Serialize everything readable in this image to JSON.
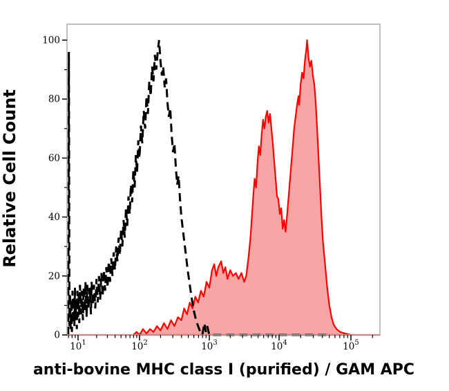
{
  "figure": {
    "background": "#ffffff",
    "frame_color": "#b0b0b0",
    "tick_color": "#000000",
    "label_color": "#000000"
  },
  "chart_data": {
    "type": "area",
    "title": "",
    "xlabel": "anti-bovine MHC class I (purified) / GAM APC",
    "ylabel": "Relative Cell Count",
    "x_scale": "log10",
    "xlim_log10": [
      0.82,
      5.4
    ],
    "ylim": [
      0,
      100
    ],
    "grid": false,
    "legend": "none",
    "x_axis": {
      "tick_base": "10",
      "tick_exponents": [
        1,
        2,
        3,
        4,
        5
      ],
      "minor_ticks": "log multiples 2-9 per decade"
    },
    "y_axis": {
      "ticks": [
        0,
        20,
        40,
        60,
        80,
        100
      ],
      "minor_step": 10
    },
    "series": [
      {
        "name": "control histogram (black dashed, open)",
        "style": "dashed",
        "stroke": "#000000",
        "stroke_width": 3,
        "dash": [
          12,
          7
        ],
        "fill": "none",
        "peak_log10x": 2.28,
        "peak_count": 100,
        "points_log10x_count": [
          [
            0.84,
            0
          ],
          [
            0.85,
            96
          ],
          [
            0.86,
            3
          ],
          [
            0.87,
            14
          ],
          [
            0.88,
            2
          ],
          [
            0.89,
            12
          ],
          [
            0.9,
            1
          ],
          [
            0.91,
            15
          ],
          [
            0.92,
            4
          ],
          [
            0.93,
            13
          ],
          [
            0.94,
            3
          ],
          [
            0.95,
            16
          ],
          [
            0.96,
            5
          ],
          [
            0.97,
            12
          ],
          [
            0.98,
            2
          ],
          [
            0.99,
            15
          ],
          [
            1.0,
            6
          ],
          [
            1.01,
            14
          ],
          [
            1.02,
            4
          ],
          [
            1.03,
            17
          ],
          [
            1.05,
            7
          ],
          [
            1.06,
            15
          ],
          [
            1.08,
            5
          ],
          [
            1.09,
            16
          ],
          [
            1.11,
            8
          ],
          [
            1.12,
            18
          ],
          [
            1.14,
            6
          ],
          [
            1.15,
            17
          ],
          [
            1.17,
            9
          ],
          [
            1.19,
            16
          ],
          [
            1.21,
            7
          ],
          [
            1.22,
            18
          ],
          [
            1.24,
            10
          ],
          [
            1.26,
            17
          ],
          [
            1.28,
            9
          ],
          [
            1.3,
            19
          ],
          [
            1.32,
            11
          ],
          [
            1.34,
            20
          ],
          [
            1.36,
            12
          ],
          [
            1.38,
            21
          ],
          [
            1.4,
            13
          ],
          [
            1.42,
            22
          ],
          [
            1.44,
            15
          ],
          [
            1.46,
            23
          ],
          [
            1.48,
            16
          ],
          [
            1.5,
            25
          ],
          [
            1.52,
            18
          ],
          [
            1.54,
            26
          ],
          [
            1.56,
            20
          ],
          [
            1.58,
            28
          ],
          [
            1.6,
            22
          ],
          [
            1.62,
            30
          ],
          [
            1.64,
            25
          ],
          [
            1.66,
            33
          ],
          [
            1.68,
            27
          ],
          [
            1.7,
            36
          ],
          [
            1.72,
            30
          ],
          [
            1.74,
            39
          ],
          [
            1.76,
            33
          ],
          [
            1.78,
            43
          ],
          [
            1.8,
            37
          ],
          [
            1.82,
            47
          ],
          [
            1.84,
            41
          ],
          [
            1.86,
            51
          ],
          [
            1.88,
            45
          ],
          [
            1.9,
            56
          ],
          [
            1.92,
            50
          ],
          [
            1.94,
            61
          ],
          [
            1.96,
            55
          ],
          [
            1.98,
            66
          ],
          [
            2.0,
            60
          ],
          [
            2.02,
            71
          ],
          [
            2.04,
            65
          ],
          [
            2.06,
            76
          ],
          [
            2.08,
            70
          ],
          [
            2.1,
            81
          ],
          [
            2.12,
            75
          ],
          [
            2.14,
            86
          ],
          [
            2.16,
            81
          ],
          [
            2.18,
            91
          ],
          [
            2.2,
            86
          ],
          [
            2.22,
            95
          ],
          [
            2.24,
            90
          ],
          [
            2.26,
            96
          ],
          [
            2.28,
            100
          ],
          [
            2.3,
            93
          ],
          [
            2.32,
            88
          ],
          [
            2.34,
            91
          ],
          [
            2.36,
            84
          ],
          [
            2.38,
            87
          ],
          [
            2.4,
            79
          ],
          [
            2.42,
            74
          ],
          [
            2.44,
            77
          ],
          [
            2.46,
            68
          ],
          [
            2.48,
            62
          ],
          [
            2.5,
            65
          ],
          [
            2.52,
            57
          ],
          [
            2.54,
            51
          ],
          [
            2.56,
            54
          ],
          [
            2.58,
            46
          ],
          [
            2.6,
            40
          ],
          [
            2.63,
            34
          ],
          [
            2.66,
            28
          ],
          [
            2.69,
            22
          ],
          [
            2.72,
            17
          ],
          [
            2.75,
            12
          ],
          [
            2.78,
            8
          ],
          [
            2.81,
            5
          ],
          [
            2.84,
            3
          ],
          [
            2.87,
            1
          ],
          [
            2.9,
            0
          ],
          [
            2.93,
            4
          ],
          [
            2.95,
            1
          ],
          [
            2.97,
            3
          ],
          [
            3.0,
            0
          ],
          [
            4.66,
            0
          ]
        ]
      },
      {
        "name": "stained histogram (red, filled)",
        "style": "solid-filled",
        "stroke": "#ff0000",
        "stroke_width": 2.2,
        "fill": "#f8a5a5",
        "peak1_log10x": 3.83,
        "peak1_count": 76,
        "peak2_log10x": 4.39,
        "peak2_count": 100,
        "points_log10x_count": [
          [
            0.82,
            0
          ],
          [
            1.9,
            0
          ],
          [
            1.95,
            1
          ],
          [
            2.0,
            0
          ],
          [
            2.05,
            2
          ],
          [
            2.1,
            0.5
          ],
          [
            2.15,
            2
          ],
          [
            2.2,
            1
          ],
          [
            2.25,
            3
          ],
          [
            2.3,
            1.5
          ],
          [
            2.35,
            4
          ],
          [
            2.4,
            2
          ],
          [
            2.45,
            5
          ],
          [
            2.5,
            3
          ],
          [
            2.55,
            6
          ],
          [
            2.6,
            5
          ],
          [
            2.64,
            9
          ],
          [
            2.68,
            7
          ],
          [
            2.72,
            11
          ],
          [
            2.76,
            9
          ],
          [
            2.8,
            13
          ],
          [
            2.84,
            11
          ],
          [
            2.88,
            15
          ],
          [
            2.92,
            13
          ],
          [
            2.96,
            18
          ],
          [
            3.0,
            16
          ],
          [
            3.04,
            22
          ],
          [
            3.07,
            24
          ],
          [
            3.1,
            20
          ],
          [
            3.13,
            23
          ],
          [
            3.17,
            25
          ],
          [
            3.2,
            21
          ],
          [
            3.23,
            23
          ],
          [
            3.26,
            19
          ],
          [
            3.3,
            22
          ],
          [
            3.34,
            20
          ],
          [
            3.38,
            21
          ],
          [
            3.42,
            19
          ],
          [
            3.46,
            21
          ],
          [
            3.5,
            18
          ],
          [
            3.53,
            20
          ],
          [
            3.56,
            26
          ],
          [
            3.59,
            33
          ],
          [
            3.61,
            40
          ],
          [
            3.63,
            47
          ],
          [
            3.65,
            53
          ],
          [
            3.67,
            50
          ],
          [
            3.69,
            58
          ],
          [
            3.71,
            64
          ],
          [
            3.73,
            61
          ],
          [
            3.75,
            68
          ],
          [
            3.77,
            73
          ],
          [
            3.79,
            70
          ],
          [
            3.81,
            74
          ],
          [
            3.83,
            76
          ],
          [
            3.85,
            72
          ],
          [
            3.87,
            75
          ],
          [
            3.89,
            70
          ],
          [
            3.91,
            65
          ],
          [
            3.93,
            59
          ],
          [
            3.95,
            53
          ],
          [
            3.97,
            47
          ],
          [
            3.99,
            46
          ],
          [
            4.01,
            41
          ],
          [
            4.03,
            43
          ],
          [
            4.05,
            36
          ],
          [
            4.07,
            39
          ],
          [
            4.09,
            35
          ],
          [
            4.11,
            40
          ],
          [
            4.13,
            46
          ],
          [
            4.15,
            52
          ],
          [
            4.17,
            58
          ],
          [
            4.19,
            64
          ],
          [
            4.21,
            70
          ],
          [
            4.23,
            74
          ],
          [
            4.25,
            78
          ],
          [
            4.27,
            81
          ],
          [
            4.28,
            78
          ],
          [
            4.3,
            85
          ],
          [
            4.32,
            89
          ],
          [
            4.34,
            87
          ],
          [
            4.36,
            93
          ],
          [
            4.38,
            97
          ],
          [
            4.39,
            100
          ],
          [
            4.41,
            94
          ],
          [
            4.43,
            91
          ],
          [
            4.45,
            93
          ],
          [
            4.47,
            88
          ],
          [
            4.49,
            85
          ],
          [
            4.51,
            79
          ],
          [
            4.53,
            70
          ],
          [
            4.55,
            60
          ],
          [
            4.57,
            50
          ],
          [
            4.59,
            40
          ],
          [
            4.61,
            32
          ],
          [
            4.64,
            24
          ],
          [
            4.67,
            16
          ],
          [
            4.7,
            10
          ],
          [
            4.73,
            6
          ],
          [
            4.76,
            3.5
          ],
          [
            4.8,
            2
          ],
          [
            4.85,
            1
          ],
          [
            4.92,
            0.5
          ],
          [
            5.0,
            0
          ],
          [
            5.4,
            0
          ]
        ]
      }
    ]
  }
}
